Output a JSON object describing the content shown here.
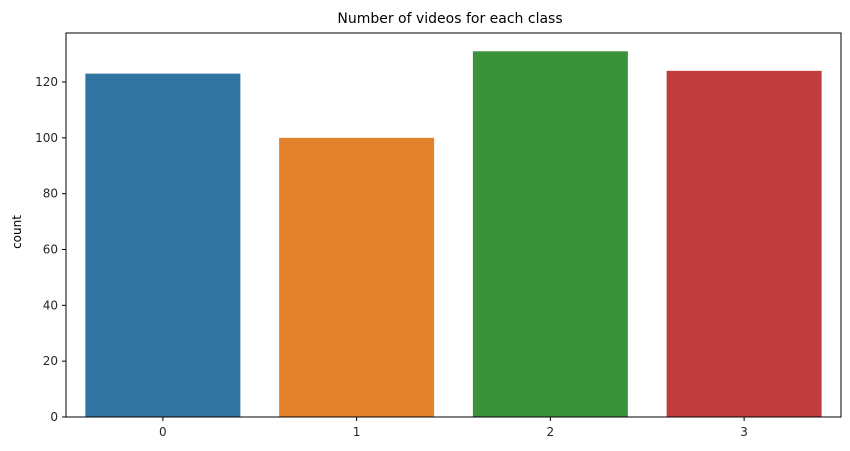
{
  "chart_data": {
    "type": "bar",
    "title": "Number of videos for each class",
    "xlabel": "",
    "ylabel": "count",
    "categories": [
      "0",
      "1",
      "2",
      "3"
    ],
    "values": [
      123,
      100,
      131,
      124
    ],
    "colors": [
      "#3274a1",
      "#e1812c",
      "#3a923a",
      "#c03d3e"
    ],
    "ylim": [
      0,
      137.55
    ],
    "yticks": [
      0,
      20,
      40,
      60,
      80,
      100,
      120
    ],
    "grid": false,
    "legend": "none"
  }
}
